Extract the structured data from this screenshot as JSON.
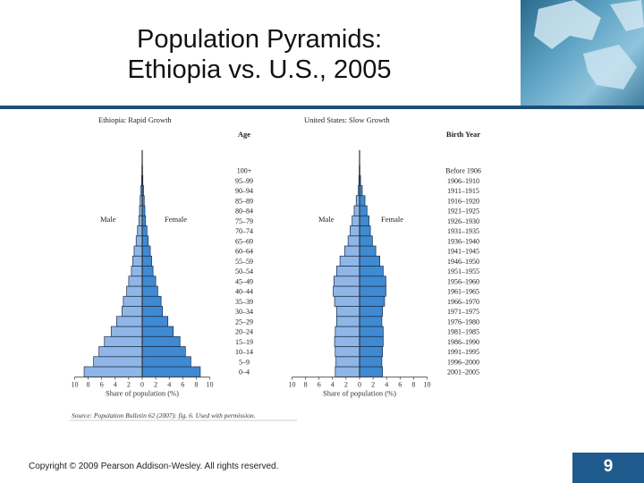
{
  "title_line1": "Population Pyramids:",
  "title_line2": "Ethiopia vs. U.S., 2005",
  "copyright": "Copyright © 2009 Pearson Addison-Wesley. All rights reserved.",
  "page_number": "9",
  "source_note": "Source: Population Bulletin 62 (2007): fig. 6. Used with permission.",
  "chart_data": [
    {
      "type": "bar",
      "orientation": "population-pyramid",
      "title": "Ethiopia: Rapid Growth",
      "xlabel": "Share of population (%)",
      "xlim": [
        -10,
        10
      ],
      "left_label": "Male",
      "right_label": "Female",
      "categories": [
        "0–4",
        "5–9",
        "10–14",
        "15–19",
        "20–24",
        "25–29",
        "30–34",
        "35–39",
        "40–44",
        "45–49",
        "50–54",
        "55–59",
        "60–64",
        "65–69",
        "70–74",
        "75–79",
        "80–84",
        "85–89",
        "90–94",
        "95–99",
        "100+"
      ],
      "series": [
        {
          "name": "Male",
          "values": [
            8.6,
            7.2,
            6.4,
            5.6,
            4.6,
            3.8,
            3.0,
            2.8,
            2.3,
            2.0,
            1.6,
            1.4,
            1.2,
            0.9,
            0.7,
            0.5,
            0.4,
            0.3,
            0.2,
            0.1,
            0.05
          ]
        },
        {
          "name": "Female",
          "values": [
            8.6,
            7.2,
            6.4,
            5.6,
            4.6,
            3.8,
            3.0,
            2.8,
            2.3,
            2.0,
            1.6,
            1.4,
            1.2,
            0.9,
            0.7,
            0.5,
            0.4,
            0.3,
            0.2,
            0.1,
            0.05
          ]
        }
      ]
    },
    {
      "type": "bar",
      "orientation": "population-pyramid",
      "title": "United States: Slow Growth",
      "xlabel": "Share of population (%)",
      "xlim": [
        -10,
        10
      ],
      "left_label": "Male",
      "right_label": "Female",
      "categories": [
        "0–4",
        "5–9",
        "10–14",
        "15–19",
        "20–24",
        "25–29",
        "30–34",
        "35–39",
        "40–44",
        "45–49",
        "50–54",
        "55–59",
        "60–64",
        "65–69",
        "70–74",
        "75–79",
        "80–84",
        "85–89",
        "90–94",
        "95–99",
        "100+"
      ],
      "series": [
        {
          "name": "Male",
          "values": [
            3.6,
            3.5,
            3.6,
            3.7,
            3.6,
            3.4,
            3.4,
            3.7,
            3.9,
            3.8,
            3.4,
            2.9,
            2.2,
            1.7,
            1.4,
            1.1,
            0.8,
            0.5,
            0.2,
            0.1,
            0.05
          ]
        },
        {
          "name": "Female",
          "values": [
            3.4,
            3.3,
            3.4,
            3.5,
            3.5,
            3.3,
            3.4,
            3.7,
            3.9,
            3.9,
            3.5,
            3.0,
            2.4,
            1.9,
            1.6,
            1.4,
            1.1,
            0.8,
            0.4,
            0.15,
            0.05
          ]
        }
      ]
    }
  ],
  "age_axis_header": "Age",
  "birth_year_header": "Birth Year",
  "birth_years": [
    "2001–2005",
    "1996–2000",
    "1991–1995",
    "1986–1990",
    "1981–1985",
    "1976–1980",
    "1971–1975",
    "1966–1970",
    "1961–1965",
    "1956–1960",
    "1951–1955",
    "1946–1950",
    "1941–1945",
    "1936–1940",
    "1931–1935",
    "1926–1930",
    "1921–1925",
    "1916–1920",
    "1911–1915",
    "1906–1910",
    "Before 1906"
  ],
  "x_tick_labels": [
    "10",
    "8",
    "6",
    "4",
    "2",
    "0",
    "2",
    "4",
    "6",
    "8",
    "10"
  ],
  "colors": {
    "bar_left": "#8fb6e6",
    "bar_right": "#3f8ad2",
    "bar_stroke": "#1b2e4a",
    "rule": "#1f4e79"
  }
}
